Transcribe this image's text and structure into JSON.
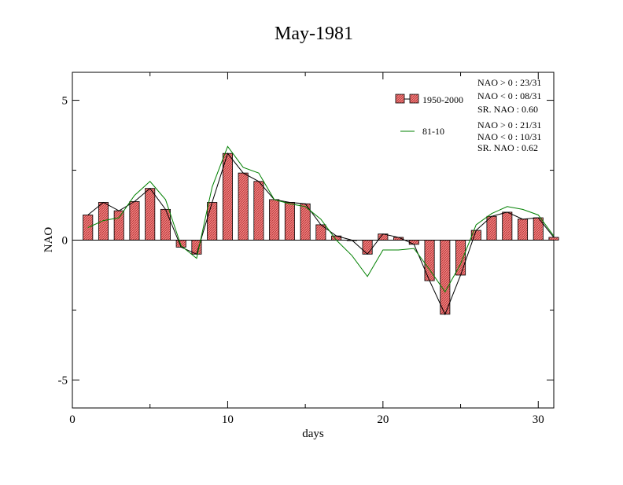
{
  "chart_data": {
    "type": "bar",
    "title": "May-1981",
    "xlabel": "days",
    "ylabel": "NAO",
    "xlim": [
      0,
      31
    ],
    "ylim": [
      -6,
      6
    ],
    "x_ticks": [
      0,
      10,
      20,
      30
    ],
    "y_ticks": [
      -5,
      0,
      5
    ],
    "x_tick_labels": [
      "0",
      "10",
      "20",
      "30"
    ],
    "y_tick_labels": [
      "-5",
      "0",
      "5"
    ],
    "grid": false,
    "legend_position": "top-right",
    "colors": {
      "bar_fill": "#f08080",
      "bar_hatch": "#b03030",
      "bar_line": "#000000",
      "climatology_line": "#008000"
    },
    "x": [
      1,
      2,
      3,
      4,
      5,
      6,
      7,
      8,
      9,
      10,
      11,
      12,
      13,
      14,
      15,
      16,
      17,
      18,
      19,
      20,
      21,
      22,
      23,
      24,
      25,
      26,
      27,
      28,
      29,
      30,
      31
    ],
    "series": [
      {
        "name": "1950-2000",
        "style": "bars-with-line",
        "values": [
          0.9,
          1.35,
          1.05,
          1.38,
          1.85,
          1.1,
          -0.25,
          -0.5,
          1.35,
          3.1,
          2.4,
          2.1,
          1.45,
          1.35,
          1.3,
          0.55,
          0.15,
          0.0,
          -0.5,
          0.22,
          0.1,
          -0.15,
          -1.45,
          -2.65,
          -1.25,
          0.35,
          0.85,
          1.0,
          0.75,
          0.8,
          0.1
        ]
      },
      {
        "name": "81-10",
        "style": "line",
        "values": [
          0.45,
          0.7,
          0.8,
          1.6,
          2.1,
          1.45,
          -0.2,
          -0.65,
          1.9,
          3.35,
          2.6,
          2.4,
          1.45,
          1.3,
          1.2,
          0.75,
          0.0,
          -0.55,
          -1.3,
          -0.35,
          -0.35,
          -0.3,
          -1.05,
          -1.85,
          -0.85,
          0.55,
          0.95,
          1.2,
          1.1,
          0.9,
          0.15
        ]
      }
    ],
    "legend": [
      {
        "label": "1950-2000",
        "stats": [
          "NAO > 0 : 23/31",
          "NAO < 0 : 08/31",
          "SR. NAO :  0.60"
        ]
      },
      {
        "label": "81-10",
        "stats": [
          "NAO > 0 : 21/31",
          "NAO < 0 : 10/31",
          "SR. NAO :  0.62"
        ]
      }
    ]
  }
}
